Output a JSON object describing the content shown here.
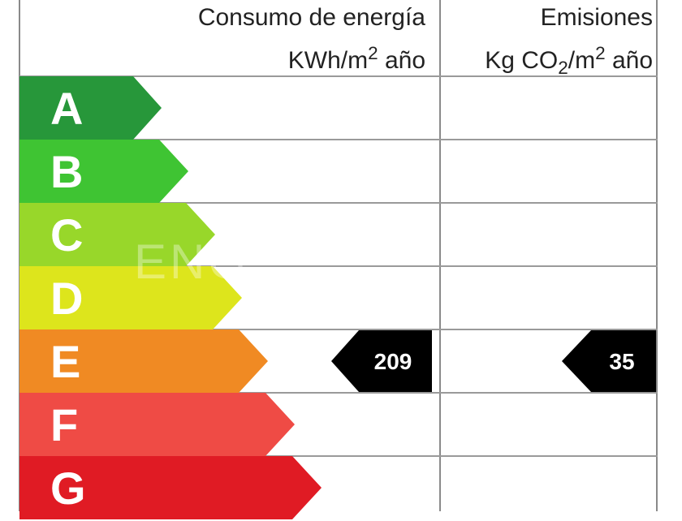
{
  "header": {
    "consumo_line1": "Consumo de energía",
    "consumo_line2_prefix": "KWh/m",
    "consumo_line2_sup": "2",
    "consumo_line2_suffix": " año",
    "emisiones_line1": "Emisiones",
    "emisiones_line2_prefix": "Kg CO",
    "emisiones_line2_sub": "2",
    "emisiones_line2_mid": "/m",
    "emisiones_line2_sup": "2",
    "emisiones_line2_suffix": " año"
  },
  "ratings": [
    {
      "letter": "A",
      "color": "#27973a"
    },
    {
      "letter": "B",
      "color": "#3fc433"
    },
    {
      "letter": "C",
      "color": "#98d72a"
    },
    {
      "letter": "D",
      "color": "#dde51c"
    },
    {
      "letter": "E",
      "color": "#f08a23"
    },
    {
      "letter": "F",
      "color": "#ef4b45"
    },
    {
      "letter": "G",
      "color": "#e01b24"
    }
  ],
  "consumo": {
    "rating": "E",
    "value": "209"
  },
  "emisiones": {
    "rating": "E",
    "value": "35"
  },
  "watermark": "ENG"
}
